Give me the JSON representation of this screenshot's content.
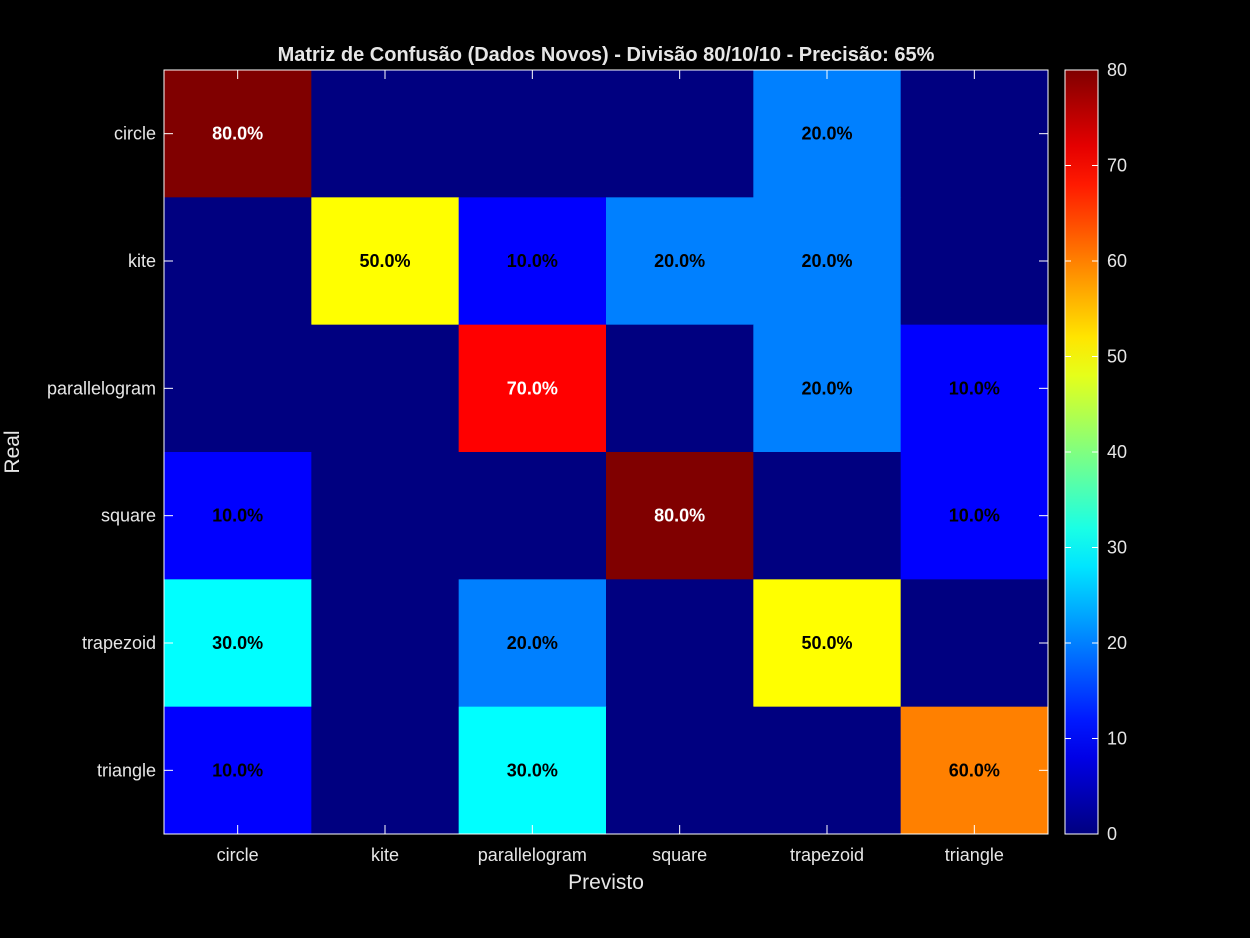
{
  "chart_data": {
    "type": "heatmap",
    "title": "Matriz de Confusão (Dados Novos) - Divisão 80/10/10 - Precisão: 65%",
    "xlabel": "Previsto",
    "ylabel": "Real",
    "x_categories": [
      "circle",
      "kite",
      "parallelogram",
      "square",
      "trapezoid",
      "triangle"
    ],
    "y_categories": [
      "circle",
      "kite",
      "parallelogram",
      "square",
      "trapezoid",
      "triangle"
    ],
    "values": [
      [
        80,
        0,
        0,
        0,
        20,
        0
      ],
      [
        0,
        50,
        10,
        20,
        20,
        0
      ],
      [
        0,
        0,
        70,
        0,
        20,
        10
      ],
      [
        10,
        0,
        0,
        80,
        0,
        10
      ],
      [
        30,
        0,
        20,
        0,
        50,
        0
      ],
      [
        10,
        0,
        30,
        0,
        0,
        60
      ]
    ],
    "cell_labels": [
      [
        "80.0%",
        "",
        "",
        "",
        "20.0%",
        ""
      ],
      [
        "",
        "50.0%",
        "10.0%",
        "20.0%",
        "20.0%",
        ""
      ],
      [
        "",
        "",
        "70.0%",
        "",
        "20.0%",
        "10.0%"
      ],
      [
        "10.0%",
        "",
        "",
        "80.0%",
        "",
        "10.0%"
      ],
      [
        "30.0%",
        "",
        "20.0%",
        "",
        "50.0%",
        ""
      ],
      [
        "10.0%",
        "",
        "30.0%",
        "",
        "",
        "60.0%"
      ]
    ],
    "colorbar": {
      "range": [
        0,
        80
      ],
      "ticks": [
        0,
        10,
        20,
        30,
        40,
        50,
        60,
        70,
        80
      ],
      "colormap": "jet"
    },
    "colors": {
      "background": "#000000",
      "text": "#ffffff",
      "axis": "#ffffff"
    }
  }
}
